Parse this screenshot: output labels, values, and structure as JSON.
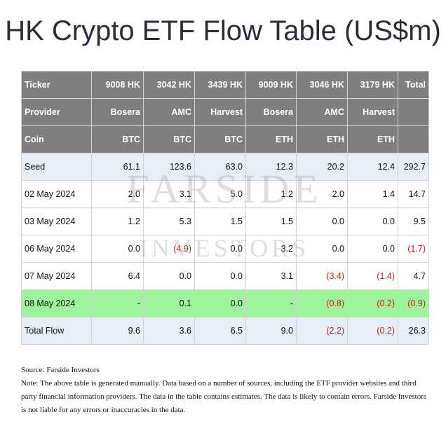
{
  "title": "HK Crypto ETF Flow Table (US$m)",
  "watermark": {
    "line1": "FARSIDE",
    "line2": "INVESTORS"
  },
  "header_rows": [
    [
      "Ticker",
      "9008 HK",
      "3042 HK",
      "3439 HK",
      "9009 HK",
      "3046 HK",
      "3179 HK",
      "Total"
    ],
    [
      "Provider",
      "Bosera",
      "AMC",
      "Harvest",
      "Bosera",
      "AMC",
      "Harvest",
      ""
    ],
    [
      "Coin",
      "BTC",
      "BTC",
      "BTC",
      "ETH",
      "ETH",
      "ETH",
      ""
    ]
  ],
  "rows": [
    {
      "style": "seed",
      "cells": [
        "Seed",
        "61.1",
        "123.6",
        "63.0",
        "12.3",
        "20.2",
        "12.4",
        "292.7"
      ]
    },
    {
      "style": "",
      "cells": [
        "02 May 2024",
        "2.0",
        "3.1",
        "5.0",
        "1.2",
        "2.0",
        "1.4",
        "14.7"
      ]
    },
    {
      "style": "",
      "cells": [
        "03 May 2024",
        "1.2",
        "5.3",
        "1.5",
        "1.5",
        "0.0",
        "0.0",
        "9.5"
      ]
    },
    {
      "style": "",
      "cells": [
        "06 May 2024",
        "0.0",
        "(4.9)",
        "0.0",
        "3.2",
        "0.0",
        "0.0",
        "(1.7)"
      ]
    },
    {
      "style": "",
      "cells": [
        "07 May 2024",
        "6.4",
        "0.0",
        "0.0",
        "3.1",
        "(3.4)",
        "(1.4)",
        "4.7"
      ]
    },
    {
      "style": "highlight",
      "cells": [
        "08 May 2024",
        "-",
        "0.1",
        "0.0",
        "-",
        "(0.8)",
        "(0.2)",
        "(0.9)"
      ]
    },
    {
      "style": "total",
      "cells": [
        "Total Flow",
        "9.6",
        "3.6",
        "6.5",
        "9.0",
        "(2.2)",
        "(0.2)",
        "26.3"
      ]
    }
  ],
  "colors": {
    "header_bg": "#7f7f7f",
    "seed_bg": "#e8eef8",
    "highlight_bg": "#9cf59c",
    "negative": "#d11a1a"
  },
  "notes": {
    "source": "Source: Farside Investors",
    "note": "Note: The above table is generated manually. Data based on a number of sources, including the ETF provider websites and third party financial information providers. The data in the table contains estimates. The data is likely to contain errors. Farside Investors is not liable for any errors or inaccuracies in the data."
  }
}
